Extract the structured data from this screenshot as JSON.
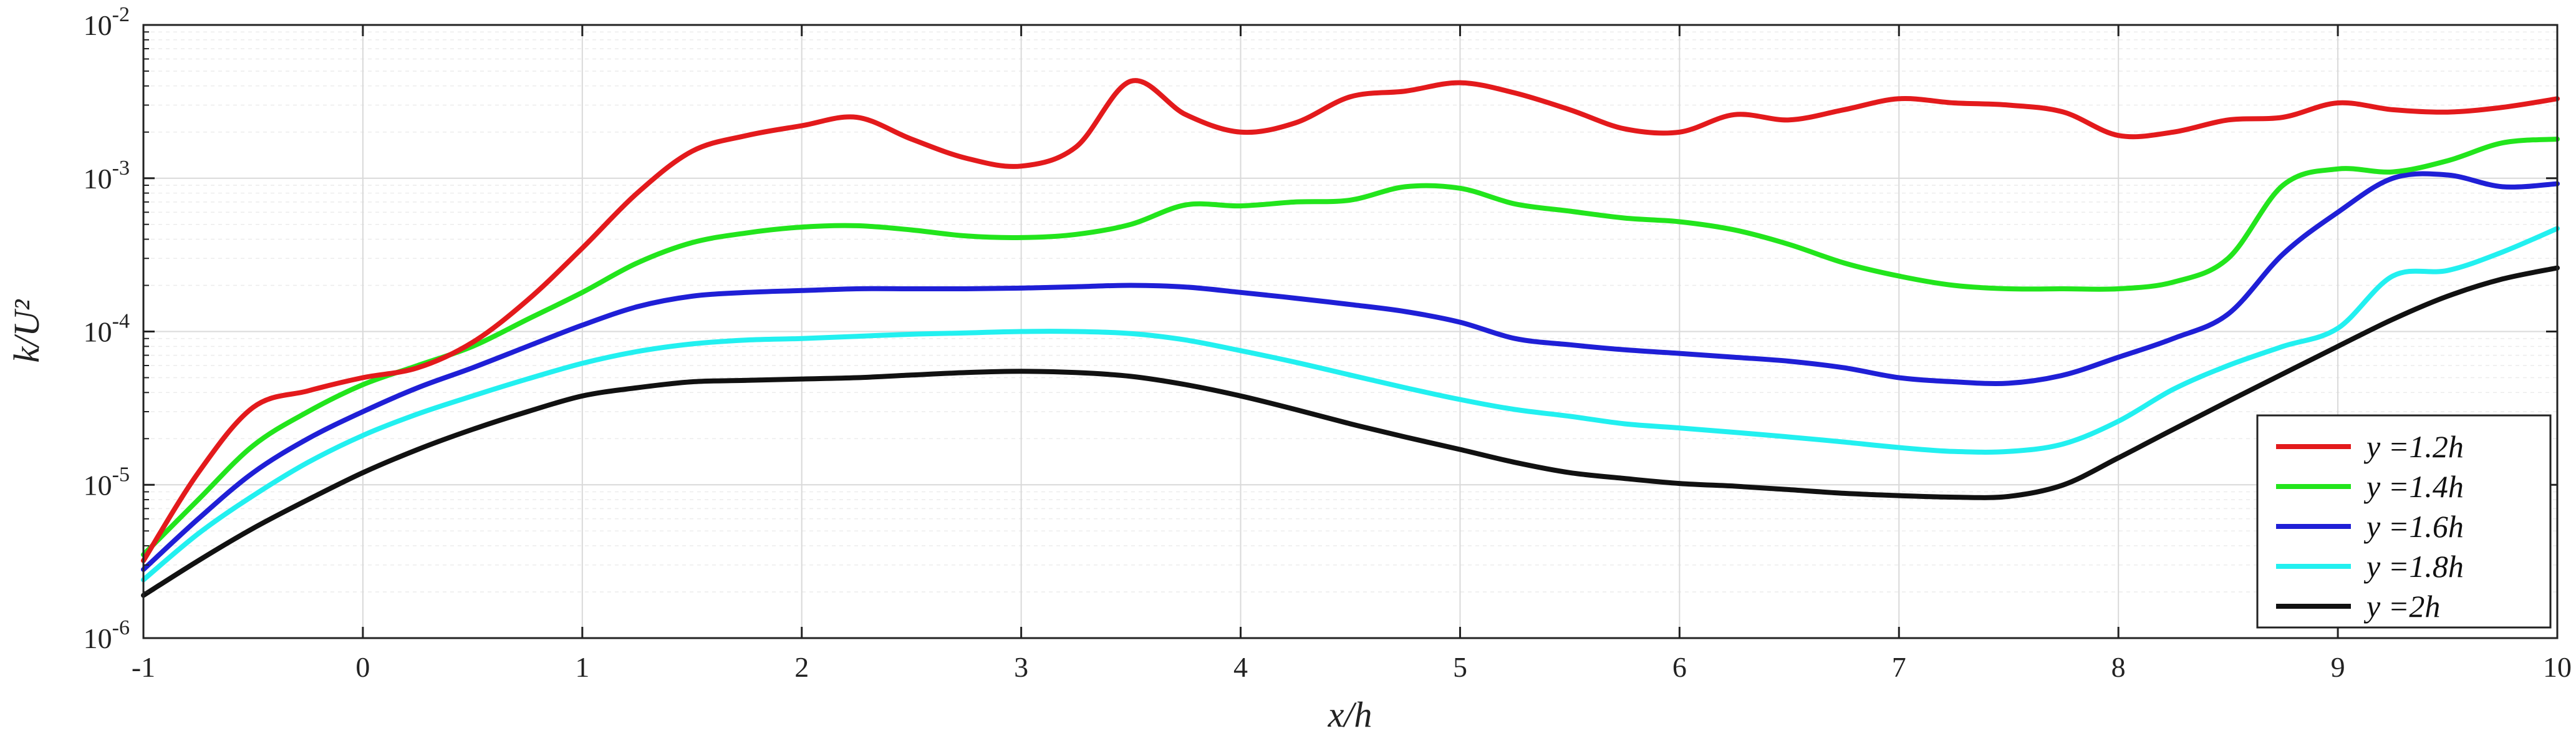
{
  "chart_data": {
    "type": "line",
    "title": "",
    "xlabel": "x/h",
    "ylabel": "k/U²",
    "xlim": [
      -1,
      10
    ],
    "ylim": [
      1e-06,
      0.01
    ],
    "yscale": "log",
    "grid": true,
    "legend_position": "bottom-right",
    "x_ticks": [
      "-1",
      "0",
      "1",
      "2",
      "3",
      "4",
      "5",
      "6",
      "7",
      "8",
      "9",
      "10"
    ],
    "y_ticks": [
      {
        "base": "10",
        "exp": "-6"
      },
      {
        "base": "10",
        "exp": "-5"
      },
      {
        "base": "10",
        "exp": "-4"
      },
      {
        "base": "10",
        "exp": "-3"
      },
      {
        "base": "10",
        "exp": "-2"
      }
    ],
    "x": [
      -1,
      -0.75,
      -0.5,
      -0.25,
      0,
      0.25,
      0.5,
      0.75,
      1,
      1.25,
      1.5,
      1.75,
      2,
      2.25,
      2.5,
      2.75,
      3,
      3.25,
      3.5,
      3.75,
      4,
      4.25,
      4.5,
      4.75,
      5,
      5.25,
      5.5,
      5.75,
      6,
      6.25,
      6.5,
      6.75,
      7,
      7.25,
      7.5,
      7.75,
      8,
      8.25,
      8.5,
      8.75,
      9,
      9.25,
      9.5,
      9.75,
      10
    ],
    "series": [
      {
        "name": "y =1.2h",
        "color": "#e31a1c",
        "values": [
          3.2e-06,
          1.2e-05,
          3.2e-05,
          4.1e-05,
          5e-05,
          5.8e-05,
          8.5e-05,
          0.00016,
          0.00035,
          0.0008,
          0.0015,
          0.0019,
          0.0022,
          0.0025,
          0.0018,
          0.00135,
          0.0012,
          0.0016,
          0.0043,
          0.0026,
          0.002,
          0.0023,
          0.0034,
          0.0037,
          0.0042,
          0.0036,
          0.0028,
          0.0021,
          0.002,
          0.0026,
          0.0024,
          0.0028,
          0.0033,
          0.0031,
          0.003,
          0.0027,
          0.0019,
          0.002,
          0.0024,
          0.0025,
          0.0031,
          0.0028,
          0.0027,
          0.0029,
          0.0033
        ]
      },
      {
        "name": "y =1.4h",
        "color": "#22e51c",
        "values": [
          3.5e-06,
          8e-06,
          1.8e-05,
          3e-05,
          4.5e-05,
          6e-05,
          8e-05,
          0.00012,
          0.00018,
          0.00028,
          0.00038,
          0.00044,
          0.00048,
          0.00049,
          0.00046,
          0.00042,
          0.00041,
          0.00043,
          0.0005,
          0.00067,
          0.00066,
          0.0007,
          0.00072,
          0.00088,
          0.00086,
          0.00068,
          0.00061,
          0.00055,
          0.00052,
          0.00046,
          0.00037,
          0.00028,
          0.00023,
          0.0002,
          0.00019,
          0.00019,
          0.00019,
          0.00021,
          0.0003,
          0.0009,
          0.00115,
          0.0011,
          0.0013,
          0.0017,
          0.0018
        ]
      },
      {
        "name": "y =1.6h",
        "color": "#1f1fd6",
        "values": [
          2.8e-06,
          6e-06,
          1.2e-05,
          2e-05,
          3e-05,
          4.3e-05,
          5.8e-05,
          8e-05,
          0.00011,
          0.000145,
          0.00017,
          0.00018,
          0.000185,
          0.00019,
          0.00019,
          0.00019,
          0.000192,
          0.000196,
          0.0002,
          0.000195,
          0.00018,
          0.000165,
          0.00015,
          0.000135,
          0.000115,
          9e-05,
          8.2e-05,
          7.6e-05,
          7.2e-05,
          6.8e-05,
          6.4e-05,
          5.8e-05,
          5e-05,
          4.7e-05,
          4.6e-05,
          5.2e-05,
          6.8e-05,
          9e-05,
          0.00013,
          0.00032,
          0.0006,
          0.001,
          0.00105,
          0.00088,
          0.00092
        ]
      },
      {
        "name": "y =1.8h",
        "color": "#22f0f0",
        "values": [
          2.4e-06,
          4.8e-06,
          8.5e-06,
          1.4e-05,
          2.1e-05,
          2.9e-05,
          3.8e-05,
          4.9e-05,
          6.2e-05,
          7.4e-05,
          8.3e-05,
          8.8e-05,
          9e-05,
          9.3e-05,
          9.6e-05,
          9.8e-05,
          0.0001,
          0.0001,
          9.7e-05,
          8.8e-05,
          7.5e-05,
          6.3e-05,
          5.2e-05,
          4.3e-05,
          3.6e-05,
          3.1e-05,
          2.8e-05,
          2.5e-05,
          2.35e-05,
          2.2e-05,
          2.05e-05,
          1.9e-05,
          1.75e-05,
          1.65e-05,
          1.65e-05,
          1.85e-05,
          2.6e-05,
          4.2e-05,
          6e-05,
          8e-05,
          0.000105,
          0.00023,
          0.00025,
          0.00033,
          0.00047
        ]
      },
      {
        "name": "y =2h",
        "color": "#111111",
        "values": [
          1.9e-06,
          3.2e-06,
          5.2e-06,
          8e-06,
          1.2e-05,
          1.7e-05,
          2.3e-05,
          3e-05,
          3.8e-05,
          4.3e-05,
          4.7e-05,
          4.8e-05,
          4.9e-05,
          5e-05,
          5.2e-05,
          5.4e-05,
          5.5e-05,
          5.4e-05,
          5.1e-05,
          4.5e-05,
          3.8e-05,
          3.1e-05,
          2.5e-05,
          2.05e-05,
          1.7e-05,
          1.4e-05,
          1.2e-05,
          1.1e-05,
          1.02e-05,
          9.8e-06,
          9.3e-06,
          8.8e-06,
          8.5e-06,
          8.3e-06,
          8.4e-06,
          1e-05,
          1.5e-05,
          2.3e-05,
          3.5e-05,
          5.3e-05,
          8e-05,
          0.00012,
          0.00017,
          0.00022,
          0.00026
        ]
      }
    ]
  }
}
